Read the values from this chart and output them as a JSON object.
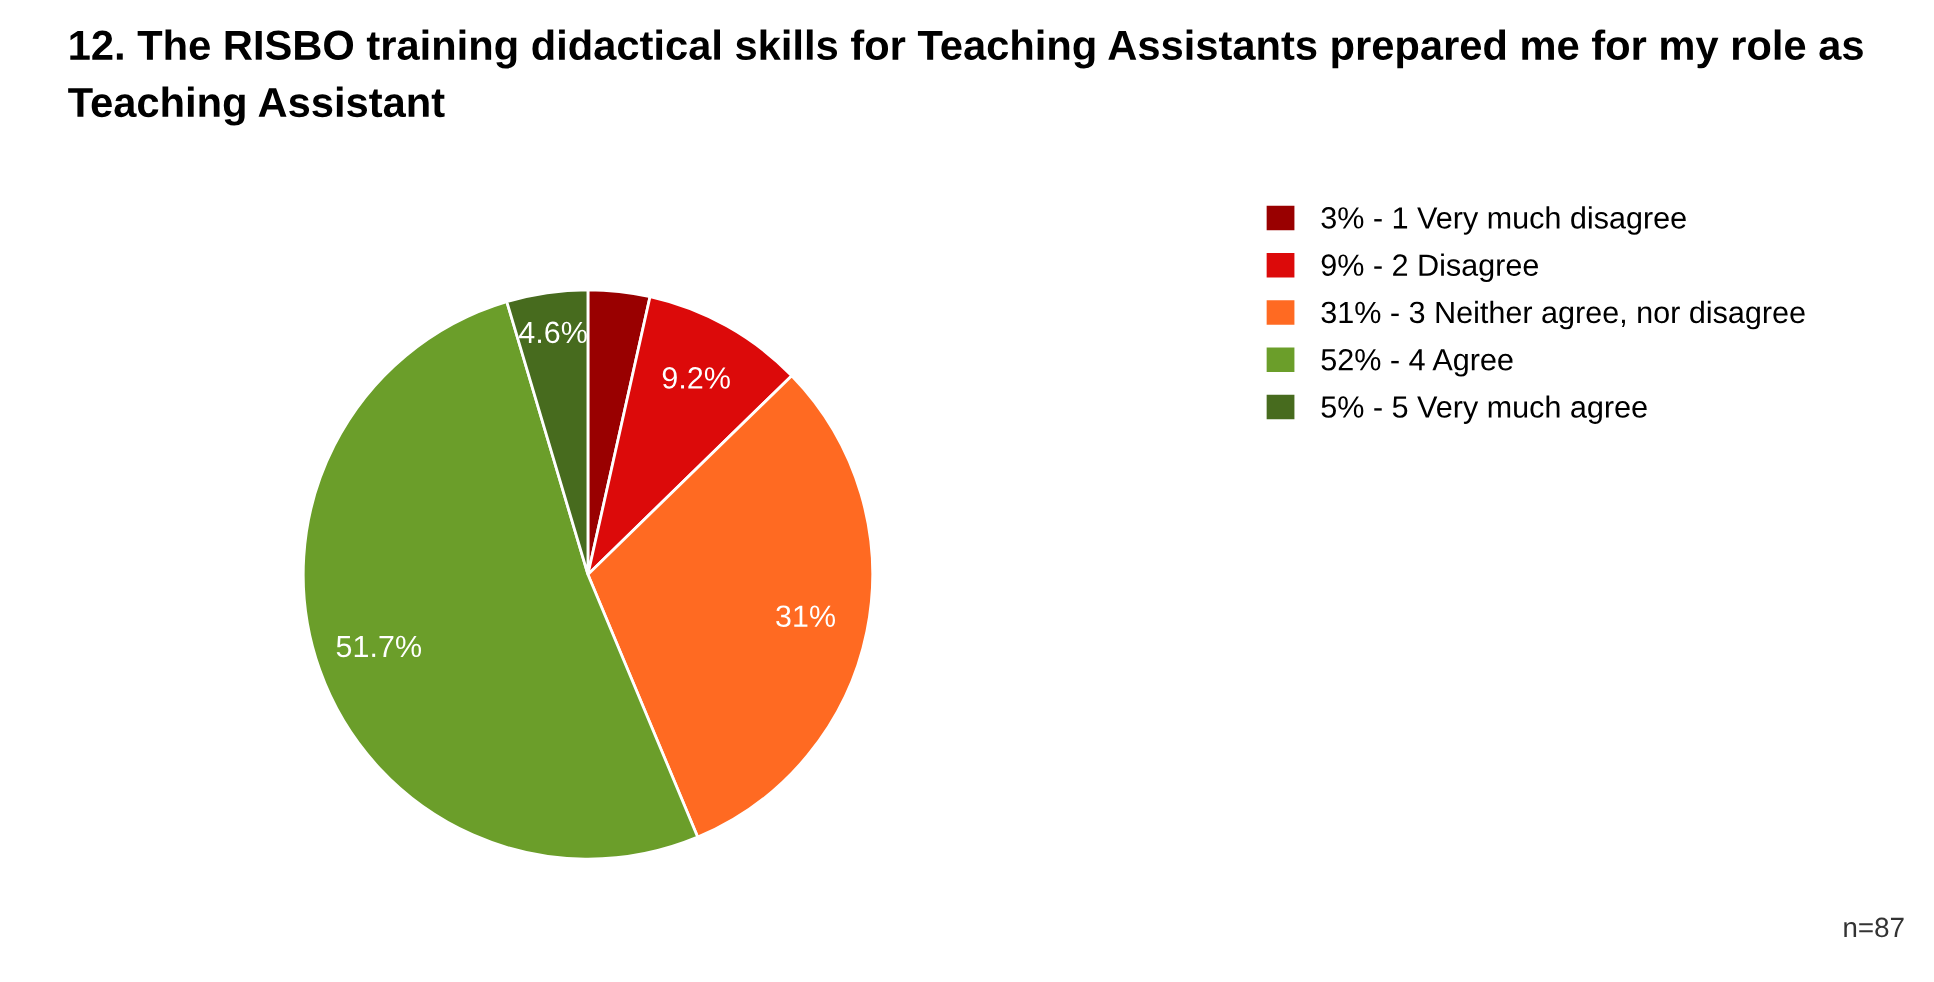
{
  "chart_data": {
    "type": "pie",
    "title": "12. The RISBO training didactical skills for Teaching Assistants prepared me for my role as Teaching Assistant",
    "categories": [
      "3% - 1 Very much disagree",
      "9% - 2 Disagree",
      "31% - 3 Neither agree, nor disagree",
      "52% - 4 Agree",
      "5% - 5 Very much agree"
    ],
    "values": [
      3.5,
      9.2,
      31,
      51.7,
      4.6
    ],
    "value_labels": [
      null,
      "9.2%",
      "31%",
      "51.7%",
      "4.6%"
    ],
    "colors": [
      "#990000",
      "#dc0a0a",
      "#ff6a22",
      "#6b9e2a",
      "#476b1e"
    ],
    "legend": "right",
    "annotations": [
      "n=87"
    ]
  }
}
